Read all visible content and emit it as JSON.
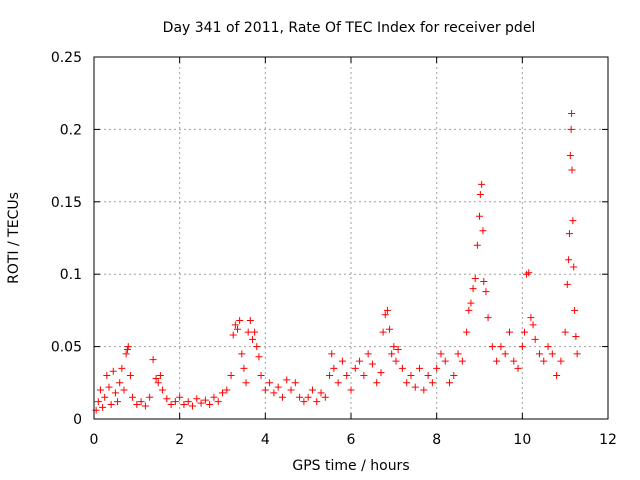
{
  "chart_data": {
    "type": "scatter",
    "title": "Day 341 of 2011, Rate Of TEC Index for receiver pdel",
    "xlabel": "GPS time / hours",
    "ylabel": "ROTI / TECUs",
    "xlim": [
      0,
      12
    ],
    "ylim": [
      0,
      0.25
    ],
    "xticks": [
      0,
      2,
      4,
      6,
      8,
      10,
      12
    ],
    "yticks": [
      0,
      0.05,
      0.1,
      0.15,
      0.2,
      0.25
    ],
    "xtick_labels": [
      "0",
      "2",
      "4",
      "6",
      "8",
      "10",
      "12"
    ],
    "ytick_labels": [
      "0",
      "0.05",
      "0.1",
      "0.15",
      "0.2",
      "0.25"
    ],
    "grid": true,
    "marker": "+",
    "color": "#ff0000",
    "series": [
      {
        "name": "ROTI",
        "points": [
          [
            0.05,
            0.006
          ],
          [
            0.1,
            0.012
          ],
          [
            0.15,
            0.02
          ],
          [
            0.2,
            0.008
          ],
          [
            0.25,
            0.015
          ],
          [
            0.3,
            0.03
          ],
          [
            0.35,
            0.022
          ],
          [
            0.4,
            0.01
          ],
          [
            0.45,
            0.033
          ],
          [
            0.5,
            0.018
          ],
          [
            0.55,
            0.012
          ],
          [
            0.6,
            0.025
          ],
          [
            0.65,
            0.035
          ],
          [
            0.7,
            0.02
          ],
          [
            0.75,
            0.045
          ],
          [
            0.78,
            0.048
          ],
          [
            0.8,
            0.05
          ],
          [
            0.85,
            0.03
          ],
          [
            0.9,
            0.015
          ],
          [
            1.0,
            0.01
          ],
          [
            1.1,
            0.012
          ],
          [
            1.2,
            0.009
          ],
          [
            1.3,
            0.015
          ],
          [
            1.38,
            0.041
          ],
          [
            1.45,
            0.028
          ],
          [
            1.5,
            0.025
          ],
          [
            1.55,
            0.03
          ],
          [
            1.6,
            0.02
          ],
          [
            1.7,
            0.014
          ],
          [
            1.8,
            0.01
          ],
          [
            1.9,
            0.012
          ],
          [
            2.0,
            0.015
          ],
          [
            2.1,
            0.01
          ],
          [
            2.2,
            0.012
          ],
          [
            2.3,
            0.009
          ],
          [
            2.4,
            0.014
          ],
          [
            2.5,
            0.011
          ],
          [
            2.6,
            0.013
          ],
          [
            2.7,
            0.01
          ],
          [
            2.8,
            0.015
          ],
          [
            2.9,
            0.012
          ],
          [
            3.0,
            0.018
          ],
          [
            3.1,
            0.02
          ],
          [
            3.2,
            0.03
          ],
          [
            3.25,
            0.058
          ],
          [
            3.3,
            0.065
          ],
          [
            3.35,
            0.062
          ],
          [
            3.4,
            0.068
          ],
          [
            3.45,
            0.045
          ],
          [
            3.5,
            0.035
          ],
          [
            3.55,
            0.025
          ],
          [
            3.6,
            0.06
          ],
          [
            3.65,
            0.068
          ],
          [
            3.7,
            0.055
          ],
          [
            3.75,
            0.06
          ],
          [
            3.8,
            0.05
          ],
          [
            3.85,
            0.043
          ],
          [
            3.9,
            0.03
          ],
          [
            4.0,
            0.02
          ],
          [
            4.1,
            0.025
          ],
          [
            4.2,
            0.018
          ],
          [
            4.3,
            0.022
          ],
          [
            4.4,
            0.015
          ],
          [
            4.5,
            0.027
          ],
          [
            4.6,
            0.02
          ],
          [
            4.7,
            0.025
          ],
          [
            4.8,
            0.015
          ],
          [
            4.9,
            0.012
          ],
          [
            5.0,
            0.015
          ],
          [
            5.1,
            0.02
          ],
          [
            5.2,
            0.012
          ],
          [
            5.3,
            0.018
          ],
          [
            5.4,
            0.015
          ],
          [
            5.5,
            0.03
          ],
          [
            5.55,
            0.045
          ],
          [
            5.6,
            0.035
          ],
          [
            5.7,
            0.025
          ],
          [
            5.8,
            0.04
          ],
          [
            5.9,
            0.03
          ],
          [
            6.0,
            0.02
          ],
          [
            6.1,
            0.035
          ],
          [
            6.2,
            0.04
          ],
          [
            6.3,
            0.03
          ],
          [
            6.4,
            0.045
          ],
          [
            6.5,
            0.038
          ],
          [
            6.6,
            0.025
          ],
          [
            6.7,
            0.032
          ],
          [
            6.75,
            0.06
          ],
          [
            6.8,
            0.072
          ],
          [
            6.85,
            0.075
          ],
          [
            6.9,
            0.062
          ],
          [
            6.95,
            0.045
          ],
          [
            7.0,
            0.05
          ],
          [
            7.05,
            0.04
          ],
          [
            7.1,
            0.048
          ],
          [
            7.2,
            0.035
          ],
          [
            7.3,
            0.025
          ],
          [
            7.4,
            0.03
          ],
          [
            7.5,
            0.022
          ],
          [
            7.6,
            0.035
          ],
          [
            7.7,
            0.02
          ],
          [
            7.8,
            0.03
          ],
          [
            7.9,
            0.025
          ],
          [
            8.0,
            0.035
          ],
          [
            8.1,
            0.045
          ],
          [
            8.2,
            0.04
          ],
          [
            8.3,
            0.025
          ],
          [
            8.4,
            0.03
          ],
          [
            8.5,
            0.045
          ],
          [
            8.6,
            0.04
          ],
          [
            8.7,
            0.06
          ],
          [
            8.75,
            0.075
          ],
          [
            8.8,
            0.08
          ],
          [
            8.85,
            0.09
          ],
          [
            8.9,
            0.097
          ],
          [
            8.95,
            0.12
          ],
          [
            9.0,
            0.14
          ],
          [
            9.02,
            0.155
          ],
          [
            9.05,
            0.162
          ],
          [
            9.08,
            0.13
          ],
          [
            9.1,
            0.095
          ],
          [
            9.15,
            0.088
          ],
          [
            9.2,
            0.07
          ],
          [
            9.3,
            0.05
          ],
          [
            9.4,
            0.04
          ],
          [
            9.5,
            0.05
          ],
          [
            9.6,
            0.045
          ],
          [
            9.7,
            0.06
          ],
          [
            9.8,
            0.04
          ],
          [
            9.9,
            0.035
          ],
          [
            10.0,
            0.05
          ],
          [
            10.05,
            0.06
          ],
          [
            10.1,
            0.1
          ],
          [
            10.15,
            0.101
          ],
          [
            10.2,
            0.07
          ],
          [
            10.25,
            0.065
          ],
          [
            10.3,
            0.055
          ],
          [
            10.4,
            0.045
          ],
          [
            10.5,
            0.04
          ],
          [
            10.6,
            0.05
          ],
          [
            10.7,
            0.045
          ],
          [
            10.8,
            0.03
          ],
          [
            10.9,
            0.04
          ],
          [
            11.0,
            0.06
          ],
          [
            11.05,
            0.093
          ],
          [
            11.08,
            0.11
          ],
          [
            11.1,
            0.128
          ],
          [
            11.12,
            0.182
          ],
          [
            11.14,
            0.2
          ],
          [
            11.15,
            0.211
          ],
          [
            11.16,
            0.172
          ],
          [
            11.18,
            0.137
          ],
          [
            11.2,
            0.105
          ],
          [
            11.22,
            0.075
          ],
          [
            11.25,
            0.057
          ],
          [
            11.28,
            0.045
          ]
        ]
      }
    ]
  }
}
